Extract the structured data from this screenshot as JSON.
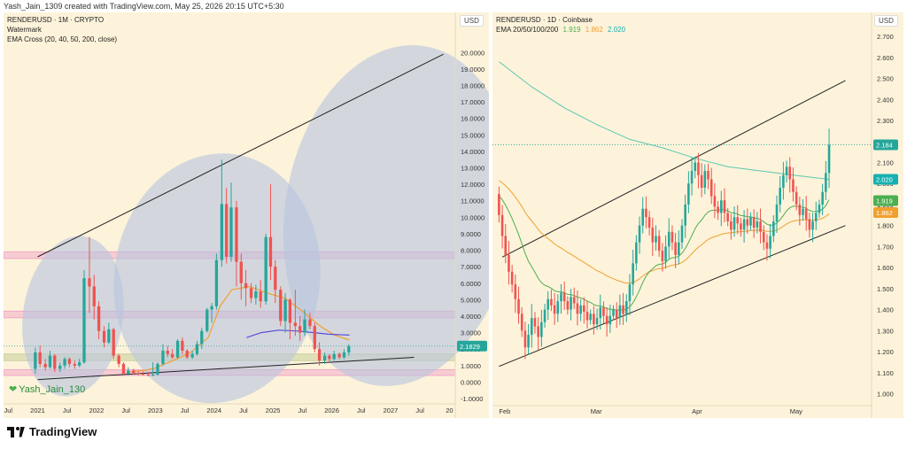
{
  "header": {
    "created_text": "Yash_Jain_1309 created with TradingView.com, May 25, 2026 20:15 UTC+5:30"
  },
  "brand": {
    "logo_text": "TradingView"
  },
  "chart_data": [
    {
      "type": "candlestick",
      "legend": [
        "RENDERUSD · 1M · CRYPTO",
        "Watermark",
        "EMA Cross (20, 40, 50, 200, close)"
      ],
      "currency": "USD",
      "watermark": "Yash_Jain_130",
      "price_ticks": [
        "20.0000",
        "19.0000",
        "18.0000",
        "17.0000",
        "16.0000",
        "15.0000",
        "14.0000",
        "13.0000",
        "12.0000",
        "11.0000",
        "10.0000",
        "9.0000",
        "8.0000",
        "7.0000",
        "6.0000",
        "5.0000",
        "4.0000",
        "3.0000",
        "2.0000",
        "1.0000",
        "0.0000",
        "-1.0000"
      ],
      "time_ticks": [
        "Jul",
        "2021",
        "Jul",
        "2022",
        "Jul",
        "2023",
        "Jul",
        "2024",
        "Jul",
        "2025",
        "Jul",
        "2026",
        "Jul",
        "2027",
        "Jul",
        "20"
      ],
      "last_price_label": "2.1829",
      "last_price": 2.1829,
      "ylim": [
        -1,
        20.5
      ],
      "xlim": [
        2020.42,
        2028.1
      ],
      "colors": {
        "up": "#26a69a",
        "down": "#ef5350",
        "ema_short": "#f0a030",
        "ema_long": "#5b4cd8",
        "zone_pink": "#f1a6c8",
        "zone_violet": "#c9a6f5",
        "zone_olive": "#c8cf9c",
        "ellipse": "#b8c4e0"
      },
      "candles": [
        {
          "t": 2020.96,
          "o": 0.8,
          "h": 2.1,
          "l": 0.5,
          "c": 1.8
        },
        {
          "t": 2021.04,
          "o": 1.8,
          "h": 2.2,
          "l": 0.9,
          "c": 1.1
        },
        {
          "t": 2021.13,
          "o": 1.1,
          "h": 1.4,
          "l": 0.7,
          "c": 0.9
        },
        {
          "t": 2021.21,
          "o": 0.9,
          "h": 1.9,
          "l": 0.8,
          "c": 1.6
        },
        {
          "t": 2021.29,
          "o": 1.6,
          "h": 1.7,
          "l": 0.6,
          "c": 0.8
        },
        {
          "t": 2021.38,
          "o": 0.8,
          "h": 1.2,
          "l": 0.6,
          "c": 1.0
        },
        {
          "t": 2021.46,
          "o": 1.0,
          "h": 1.5,
          "l": 0.8,
          "c": 1.4
        },
        {
          "t": 2021.54,
          "o": 1.4,
          "h": 1.5,
          "l": 0.9,
          "c": 1.1
        },
        {
          "t": 2021.63,
          "o": 1.1,
          "h": 1.3,
          "l": 0.8,
          "c": 1.0
        },
        {
          "t": 2021.71,
          "o": 1.0,
          "h": 1.4,
          "l": 0.9,
          "c": 1.2
        },
        {
          "t": 2021.79,
          "o": 1.2,
          "h": 6.8,
          "l": 1.1,
          "c": 6.3
        },
        {
          "t": 2021.88,
          "o": 6.3,
          "h": 8.8,
          "l": 4.2,
          "c": 5.8
        },
        {
          "t": 2021.96,
          "o": 5.8,
          "h": 6.5,
          "l": 3.8,
          "c": 4.6
        },
        {
          "t": 2022.04,
          "o": 4.6,
          "h": 4.9,
          "l": 2.6,
          "c": 3.1
        },
        {
          "t": 2022.13,
          "o": 3.1,
          "h": 3.4,
          "l": 2.1,
          "c": 2.4
        },
        {
          "t": 2022.21,
          "o": 2.4,
          "h": 3.6,
          "l": 2.3,
          "c": 3.2
        },
        {
          "t": 2022.29,
          "o": 3.2,
          "h": 3.3,
          "l": 1.4,
          "c": 1.6
        },
        {
          "t": 2022.38,
          "o": 1.6,
          "h": 1.7,
          "l": 0.9,
          "c": 1.1
        },
        {
          "t": 2022.46,
          "o": 1.1,
          "h": 1.2,
          "l": 0.4,
          "c": 0.5
        },
        {
          "t": 2022.54,
          "o": 0.5,
          "h": 0.9,
          "l": 0.4,
          "c": 0.7
        },
        {
          "t": 2022.63,
          "o": 0.7,
          "h": 0.8,
          "l": 0.45,
          "c": 0.55
        },
        {
          "t": 2022.71,
          "o": 0.55,
          "h": 0.7,
          "l": 0.4,
          "c": 0.5
        },
        {
          "t": 2022.79,
          "o": 0.5,
          "h": 0.65,
          "l": 0.4,
          "c": 0.45
        },
        {
          "t": 2022.88,
          "o": 0.45,
          "h": 0.6,
          "l": 0.35,
          "c": 0.4
        },
        {
          "t": 2022.96,
          "o": 0.4,
          "h": 1.2,
          "l": 0.35,
          "c": 0.45
        },
        {
          "t": 2023.04,
          "o": 0.45,
          "h": 1.2,
          "l": 0.4,
          "c": 1.1
        },
        {
          "t": 2023.13,
          "o": 1.1,
          "h": 2.3,
          "l": 1.0,
          "c": 1.9
        },
        {
          "t": 2023.21,
          "o": 1.9,
          "h": 2.2,
          "l": 1.5,
          "c": 1.7
        },
        {
          "t": 2023.29,
          "o": 1.7,
          "h": 2.0,
          "l": 1.4,
          "c": 1.5
        },
        {
          "t": 2023.38,
          "o": 1.5,
          "h": 2.6,
          "l": 1.4,
          "c": 2.5
        },
        {
          "t": 2023.46,
          "o": 2.5,
          "h": 2.7,
          "l": 1.7,
          "c": 1.9
        },
        {
          "t": 2023.54,
          "o": 1.9,
          "h": 2.0,
          "l": 1.4,
          "c": 1.5
        },
        {
          "t": 2023.63,
          "o": 1.5,
          "h": 1.9,
          "l": 1.4,
          "c": 1.7
        },
        {
          "t": 2023.71,
          "o": 1.7,
          "h": 2.5,
          "l": 1.6,
          "c": 2.3
        },
        {
          "t": 2023.79,
          "o": 2.3,
          "h": 3.3,
          "l": 2.0,
          "c": 3.1
        },
        {
          "t": 2023.88,
          "o": 3.1,
          "h": 4.5,
          "l": 3.0,
          "c": 4.4
        },
        {
          "t": 2023.96,
          "o": 4.4,
          "h": 4.8,
          "l": 3.6,
          "c": 4.6
        },
        {
          "t": 2024.04,
          "o": 4.6,
          "h": 7.8,
          "l": 4.4,
          "c": 7.4
        },
        {
          "t": 2024.13,
          "o": 7.4,
          "h": 13.5,
          "l": 7.0,
          "c": 10.8
        },
        {
          "t": 2024.21,
          "o": 10.8,
          "h": 11.8,
          "l": 7.2,
          "c": 7.6
        },
        {
          "t": 2024.29,
          "o": 7.6,
          "h": 12.1,
          "l": 7.3,
          "c": 10.6
        },
        {
          "t": 2024.38,
          "o": 10.6,
          "h": 11.0,
          "l": 5.8,
          "c": 7.3
        },
        {
          "t": 2024.46,
          "o": 7.3,
          "h": 7.8,
          "l": 5.0,
          "c": 6.0
        },
        {
          "t": 2024.54,
          "o": 6.0,
          "h": 6.8,
          "l": 4.6,
          "c": 5.7
        },
        {
          "t": 2024.63,
          "o": 5.7,
          "h": 6.0,
          "l": 4.8,
          "c": 5.1
        },
        {
          "t": 2024.71,
          "o": 5.1,
          "h": 5.9,
          "l": 4.7,
          "c": 5.5
        },
        {
          "t": 2024.79,
          "o": 5.5,
          "h": 6.2,
          "l": 4.5,
          "c": 4.9
        },
        {
          "t": 2024.88,
          "o": 4.9,
          "h": 9.0,
          "l": 4.7,
          "c": 8.8
        },
        {
          "t": 2024.96,
          "o": 8.8,
          "h": 12.0,
          "l": 6.2,
          "c": 7.0
        },
        {
          "t": 2025.04,
          "o": 7.0,
          "h": 7.4,
          "l": 4.8,
          "c": 5.6
        },
        {
          "t": 2025.13,
          "o": 5.6,
          "h": 5.8,
          "l": 3.4,
          "c": 3.7
        },
        {
          "t": 2025.21,
          "o": 3.7,
          "h": 5.4,
          "l": 3.0,
          "c": 5.0
        },
        {
          "t": 2025.29,
          "o": 5.0,
          "h": 5.1,
          "l": 2.6,
          "c": 3.6
        },
        {
          "t": 2025.38,
          "o": 3.6,
          "h": 5.6,
          "l": 2.8,
          "c": 3.4
        },
        {
          "t": 2025.46,
          "o": 3.4,
          "h": 4.0,
          "l": 2.5,
          "c": 3.0
        },
        {
          "t": 2025.54,
          "o": 3.0,
          "h": 4.4,
          "l": 2.8,
          "c": 3.8
        },
        {
          "t": 2025.63,
          "o": 3.8,
          "h": 4.2,
          "l": 3.2,
          "c": 3.4
        },
        {
          "t": 2025.71,
          "o": 3.4,
          "h": 3.6,
          "l": 1.8,
          "c": 2.0
        },
        {
          "t": 2025.79,
          "o": 2.0,
          "h": 2.4,
          "l": 1.0,
          "c": 1.3
        },
        {
          "t": 2025.88,
          "o": 1.3,
          "h": 1.8,
          "l": 1.1,
          "c": 1.6
        },
        {
          "t": 2025.96,
          "o": 1.6,
          "h": 1.7,
          "l": 1.2,
          "c": 1.4
        },
        {
          "t": 2026.04,
          "o": 1.4,
          "h": 1.9,
          "l": 1.3,
          "c": 1.7
        },
        {
          "t": 2026.13,
          "o": 1.7,
          "h": 1.8,
          "l": 1.4,
          "c": 1.5
        },
        {
          "t": 2026.21,
          "o": 1.5,
          "h": 2.0,
          "l": 1.4,
          "c": 1.8
        },
        {
          "t": 2026.29,
          "o": 1.8,
          "h": 2.3,
          "l": 1.6,
          "c": 2.18
        }
      ],
      "ema_short_series": [
        [
          2022.55,
          0.6
        ],
        [
          2022.8,
          0.7
        ],
        [
          2023.0,
          0.85
        ],
        [
          2023.3,
          1.3
        ],
        [
          2023.6,
          1.8
        ],
        [
          2023.9,
          2.7
        ],
        [
          2024.1,
          4.6
        ],
        [
          2024.3,
          5.6
        ],
        [
          2024.6,
          5.8
        ],
        [
          2024.9,
          5.4
        ],
        [
          2025.2,
          5.1
        ],
        [
          2025.5,
          4.3
        ],
        [
          2025.8,
          3.4
        ],
        [
          2026.05,
          2.85
        ],
        [
          2026.3,
          2.55
        ]
      ],
      "ema_long_series": [
        [
          2024.55,
          2.7
        ],
        [
          2024.8,
          3.0
        ],
        [
          2025.1,
          3.15
        ],
        [
          2025.4,
          3.1
        ],
        [
          2025.7,
          3.0
        ],
        [
          2025.95,
          2.9
        ],
        [
          2026.3,
          2.85
        ]
      ],
      "zones": [
        {
          "name": "upper-pink",
          "y0": 7.5,
          "y1": 7.9,
          "color": "pink"
        },
        {
          "name": "mid-pink",
          "y0": 3.9,
          "y1": 4.3,
          "color": "pink"
        },
        {
          "name": "lower-olive",
          "y0": 1.3,
          "y1": 1.7,
          "color": "olive"
        },
        {
          "name": "bottom-pink",
          "y0": 0.4,
          "y1": 0.75,
          "color": "pink"
        }
      ],
      "trendlines": [
        {
          "name": "upper-trendline",
          "p1": [
            2021.0,
            7.6
          ],
          "p2": [
            2027.9,
            19.9
          ]
        },
        {
          "name": "lower-trendline",
          "p1": [
            2021.0,
            0.15
          ],
          "p2": [
            2027.4,
            1.5
          ]
        }
      ],
      "ellipses": [
        {
          "name": "ellipse-2021",
          "cx": 2021.6,
          "cy": 4.0,
          "rx": 0.85,
          "ry": 4.9
        },
        {
          "name": "ellipse-2024",
          "cx": 2024.05,
          "cy": 6.3,
          "rx": 1.75,
          "ry": 7.6
        },
        {
          "name": "ellipse-2026",
          "cx": 2027.15,
          "cy": 10.1,
          "rx": 1.95,
          "ry": 10.4
        }
      ]
    },
    {
      "type": "candlestick",
      "legend_title": "RENDERUSD · 1D · Coinbase",
      "ema_label": "EMA 20/50/100/200",
      "ema_values": [
        "1.919",
        "1.862",
        "2.020"
      ],
      "currency": "USD",
      "price_ticks": [
        "2.700",
        "2.600",
        "2.500",
        "2.400",
        "2.300",
        "2.200",
        "2.100",
        "2.000",
        "1.900",
        "1.800",
        "1.700",
        "1.600",
        "1.500",
        "1.400",
        "1.300",
        "1.200",
        "1.100",
        "1.000"
      ],
      "time_ticks": [
        {
          "label": "Feb",
          "d": 0
        },
        {
          "label": "Mar",
          "d": 28
        },
        {
          "label": "Apr",
          "d": 59
        },
        {
          "label": "May",
          "d": 89
        }
      ],
      "price_labels": [
        {
          "text": "2.184",
          "value": 2.184,
          "color": "#26a69a"
        },
        {
          "text": "2.020",
          "value": 2.02,
          "color": "#17b0b0"
        },
        {
          "text": "1.919",
          "value": 1.919,
          "color": "#4caf50"
        },
        {
          "text": "1.862",
          "value": 1.862,
          "color": "#f0a030"
        }
      ],
      "ylim": [
        0.96,
        2.73
      ],
      "xlim": [
        -2,
        114
      ],
      "colors": {
        "up": "#26a69a",
        "down": "#ef5350",
        "ema20": "#4caf50",
        "ema50": "#f0a030",
        "ema200": "#5cc7b2"
      },
      "closes": [
        1.85,
        1.75,
        1.66,
        1.58,
        1.52,
        1.45,
        1.38,
        1.3,
        1.22,
        1.28,
        1.36,
        1.32,
        1.27,
        1.34,
        1.4,
        1.45,
        1.42,
        1.38,
        1.44,
        1.48,
        1.44,
        1.4,
        1.46,
        1.43,
        1.38,
        1.42,
        1.39,
        1.35,
        1.38,
        1.33,
        1.36,
        1.41,
        1.37,
        1.33,
        1.37,
        1.4,
        1.36,
        1.42,
        1.38,
        1.44,
        1.52,
        1.62,
        1.72,
        1.8,
        1.88,
        1.84,
        1.79,
        1.72,
        1.75,
        1.68,
        1.63,
        1.7,
        1.77,
        1.72,
        1.66,
        1.72,
        1.8,
        1.9,
        2.0,
        2.06,
        2.1,
        2.04,
        1.98,
        2.06,
        2.02,
        1.94,
        1.89,
        1.86,
        1.92,
        1.86,
        1.82,
        1.78,
        1.84,
        1.81,
        1.78,
        1.83,
        1.8,
        1.84,
        1.79,
        1.82,
        1.77,
        1.72,
        1.69,
        1.75,
        1.82,
        1.9,
        1.98,
        2.04,
        2.08,
        2.02,
        1.96,
        1.9,
        1.85,
        1.88,
        1.83,
        1.78,
        1.82,
        1.86,
        1.9,
        1.96,
        2.05,
        2.184
      ],
      "ema200_series": [
        [
          0,
          2.58
        ],
        [
          10,
          2.46
        ],
        [
          20,
          2.36
        ],
        [
          30,
          2.28
        ],
        [
          40,
          2.21
        ],
        [
          50,
          2.17
        ],
        [
          60,
          2.12
        ],
        [
          70,
          2.08
        ],
        [
          80,
          2.06
        ],
        [
          90,
          2.04
        ],
        [
          101,
          2.02
        ]
      ],
      "trendlines": [
        {
          "name": "upper-channel-line",
          "p1": [
            1,
            1.65
          ],
          "p2": [
            106,
            2.49
          ]
        },
        {
          "name": "lower-channel-line",
          "p1": [
            0,
            1.13
          ],
          "p2": [
            106,
            1.8
          ]
        }
      ],
      "dotted_level": 2.184
    }
  ]
}
